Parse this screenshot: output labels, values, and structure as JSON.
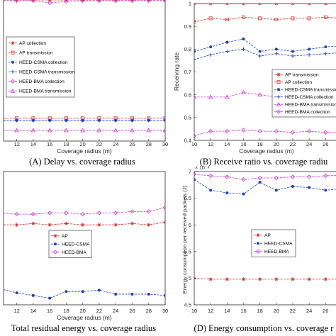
{
  "chart_data": [
    {
      "type": "line",
      "caption": "(A)  Delay vs. coverage radius",
      "xlabel": "Coverage radius (m)",
      "ylabel": "",
      "x": [
        10,
        12,
        14,
        16,
        18,
        20,
        22,
        24,
        26,
        28,
        30
      ],
      "xticks": [
        12,
        14,
        16,
        18,
        20,
        22,
        24,
        26,
        28,
        30
      ],
      "xlim": [
        10.4,
        30
      ],
      "ylim": [
        0,
        1
      ],
      "legend": "center-left",
      "series": [
        {
          "name": "AP collection",
          "color": "#d62728",
          "marker": "star",
          "values": [
            0.99,
            0.99,
            0.99,
            0.99,
            0.99,
            0.99,
            0.99,
            0.99,
            0.99,
            0.99,
            0.99
          ]
        },
        {
          "name": "AP transmission",
          "color": "#d62728",
          "marker": "square",
          "values": [
            0.16,
            0.16,
            0.16,
            0.16,
            0.16,
            0.16,
            0.16,
            0.16,
            0.16,
            0.16,
            0.16
          ]
        },
        {
          "name": "HEED-CSMA collection",
          "color": "#1f3cc8",
          "marker": "dot",
          "values": [
            0.145,
            0.145,
            0.145,
            0.145,
            0.145,
            0.145,
            0.145,
            0.145,
            0.145,
            0.145,
            0.145
          ]
        },
        {
          "name": "HEED-CSMA transmission",
          "color": "#1f3cc8",
          "marker": "plus",
          "values": [
            0.145,
            0.145,
            0.145,
            0.145,
            0.145,
            0.145,
            0.145,
            0.145,
            0.145,
            0.145,
            0.145
          ]
        },
        {
          "name": "HEED-BMA collection",
          "color": "#cc33cc",
          "marker": "diamond",
          "values": [
            0.985,
            0.985,
            0.985,
            0.97,
            0.98,
            0.985,
            0.985,
            0.985,
            0.985,
            0.985,
            0.985
          ]
        },
        {
          "name": "HEED-BMA transmission",
          "color": "#cc33cc",
          "marker": "triangle",
          "values": [
            0.075,
            0.075,
            0.075,
            0.075,
            0.075,
            0.075,
            0.075,
            0.075,
            0.075,
            0.075,
            0.075
          ]
        }
      ]
    },
    {
      "type": "line",
      "caption": "(B)  Receive ratio vs. coverage radiu",
      "xlabel": "Coverage radius (m)",
      "ylabel": "Receiving rate",
      "x": [
        10,
        12,
        14,
        16,
        18,
        20,
        22,
        24,
        26,
        28
      ],
      "xticks": [
        10,
        12,
        14,
        16,
        18,
        20,
        22,
        24,
        26
      ],
      "xlim": [
        10,
        27.7
      ],
      "ylim": [
        0.4,
        1
      ],
      "yticks": [
        0.4,
        0.5,
        0.6,
        0.7,
        0.8,
        0.9,
        1
      ],
      "legend": "lower-right",
      "series": [
        {
          "name": "AP transmission",
          "color": "#d62728",
          "marker": "star",
          "values": [
            1.0,
            1.0,
            1.0,
            1.0,
            1.0,
            1.0,
            1.0,
            1.0,
            1.0,
            1.0
          ]
        },
        {
          "name": "AP collection",
          "color": "#d62728",
          "marker": "square",
          "values": [
            0.92,
            0.935,
            0.93,
            0.94,
            0.935,
            0.93,
            0.935,
            0.935,
            0.94,
            0.935
          ]
        },
        {
          "name": "HEED-CSMA transmission",
          "color": "#1f3cc8",
          "marker": "dot",
          "values": [
            0.79,
            0.81,
            0.83,
            0.845,
            0.79,
            0.8,
            0.79,
            0.8,
            0.81,
            0.815
          ]
        },
        {
          "name": "HEED-CSMA collection",
          "color": "#1f3cc8",
          "marker": "plus",
          "values": [
            0.755,
            0.775,
            0.79,
            0.8,
            0.77,
            0.78,
            0.77,
            0.775,
            0.78,
            0.785
          ]
        },
        {
          "name": "HEED-BMA transmission",
          "color": "#cc33cc",
          "marker": "triangle",
          "values": [
            0.59,
            0.59,
            0.59,
            0.61,
            0.6,
            0.59,
            0.59,
            0.59,
            0.59,
            0.59
          ]
        },
        {
          "name": "HEED-BMA collection",
          "color": "#cc33cc",
          "marker": "diamond",
          "values": [
            0.42,
            0.44,
            0.44,
            0.445,
            0.44,
            0.44,
            0.435,
            0.44,
            0.435,
            0.435
          ]
        }
      ]
    },
    {
      "type": "line",
      "caption": "Total residual energy vs. coverage radius",
      "xlabel": "Coverage radius (m)",
      "ylabel": "",
      "x": [
        10,
        12,
        14,
        16,
        18,
        20,
        22,
        24,
        26,
        28,
        30
      ],
      "xticks": [
        12,
        14,
        16,
        18,
        20,
        22,
        24,
        26,
        28,
        30
      ],
      "xlim": [
        10.4,
        30
      ],
      "ylim": [
        0,
        1
      ],
      "legend": "center",
      "series": [
        {
          "name": "AP",
          "color": "#d62728",
          "marker": "star",
          "values": [
            0.6,
            0.6,
            0.61,
            0.6,
            0.61,
            0.6,
            0.6,
            0.6,
            0.61,
            0.6,
            0.62
          ]
        },
        {
          "name": "HEED-CSMA",
          "color": "#1f3cc8",
          "marker": "dot",
          "values": [
            0.12,
            0.09,
            0.07,
            0.05,
            0.1,
            0.1,
            0.11,
            0.08,
            0.08,
            0.08,
            0.07
          ]
        },
        {
          "name": "HEED-BMA",
          "color": "#cc33cc",
          "marker": "diamond",
          "values": [
            0.69,
            0.68,
            0.68,
            0.69,
            0.69,
            0.68,
            0.69,
            0.69,
            0.7,
            0.7,
            0.73
          ]
        }
      ]
    },
    {
      "type": "line",
      "caption": "(D)  Energy consumption vs. coverage r",
      "xlabel": "Coverage radius (m)",
      "ylabel": "Energy consumption per received packets (J)",
      "exponent_label": "× 10⁻⁴",
      "x": [
        10,
        12,
        14,
        16,
        18,
        20,
        22,
        24,
        26,
        28
      ],
      "xticks": [
        10,
        12,
        14,
        16,
        18,
        20,
        22,
        24,
        26
      ],
      "xlim": [
        10,
        27.7
      ],
      "ylim": [
        4.5,
        7
      ],
      "yticks": [
        4.5,
        5,
        5.5,
        6,
        6.5,
        7
      ],
      "legend": "center",
      "series": [
        {
          "name": "AP",
          "color": "#d62728",
          "marker": "star",
          "values": [
            5.0,
            4.98,
            4.98,
            4.98,
            4.98,
            4.98,
            4.98,
            4.98,
            4.98,
            4.98
          ]
        },
        {
          "name": "HEED-CSMA",
          "color": "#1f3cc8",
          "marker": "dot",
          "values": [
            6.85,
            6.65,
            6.6,
            6.58,
            6.8,
            6.65,
            6.72,
            6.7,
            6.65,
            6.68
          ]
        },
        {
          "name": "HEED-BMA",
          "color": "#cc33cc",
          "marker": "diamond",
          "values": [
            6.95,
            6.92,
            6.9,
            6.85,
            6.88,
            6.88,
            6.9,
            6.9,
            6.92,
            6.93
          ]
        }
      ]
    }
  ]
}
